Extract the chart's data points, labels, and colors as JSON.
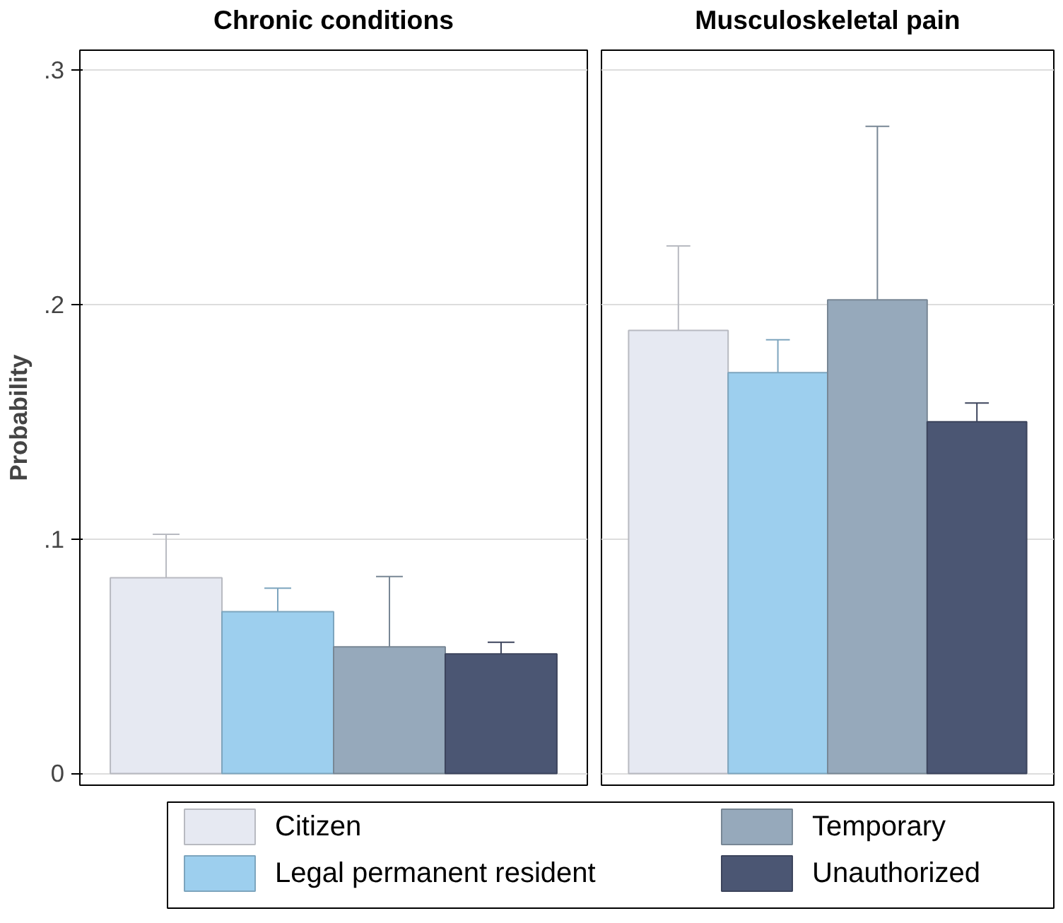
{
  "chart_data": {
    "type": "bar",
    "ylabel": "Probability",
    "categories": [
      "Chronic conditions",
      "Musculoskeletal pain"
    ],
    "ylim": [
      -0.005,
      0.3085
    ],
    "yticks": [
      0,
      {
        "value": 0.1,
        "label": ".1"
      },
      {
        "value": 0.2,
        "label": ".2"
      },
      {
        "value": 0.3,
        "label": ".3"
      }
    ],
    "grid": "y",
    "legend": "bottom",
    "series": [
      {
        "name": "Citizen",
        "color": "#e6e9f2",
        "values": [
          0.0835,
          0.189
        ],
        "errors": [
          [
            0.0835,
            0.102
          ],
          [
            0.189,
            0.225
          ]
        ]
      },
      {
        "name": "Legal permanent resident",
        "color": "#9dcfee",
        "values": [
          0.069,
          0.171
        ],
        "errors": [
          [
            0.069,
            0.079
          ],
          [
            0.171,
            0.185
          ]
        ]
      },
      {
        "name": "Temporary",
        "color": "#96a9bb",
        "values": [
          0.054,
          0.202
        ],
        "errors": [
          [
            0.054,
            0.084
          ],
          [
            0.202,
            0.276
          ]
        ]
      },
      {
        "name": "Unauthorized",
        "color": "#4b5673",
        "values": [
          0.051,
          0.15
        ],
        "errors": [
          [
            0.051,
            0.056
          ],
          [
            0.15,
            0.158
          ]
        ]
      }
    ]
  }
}
